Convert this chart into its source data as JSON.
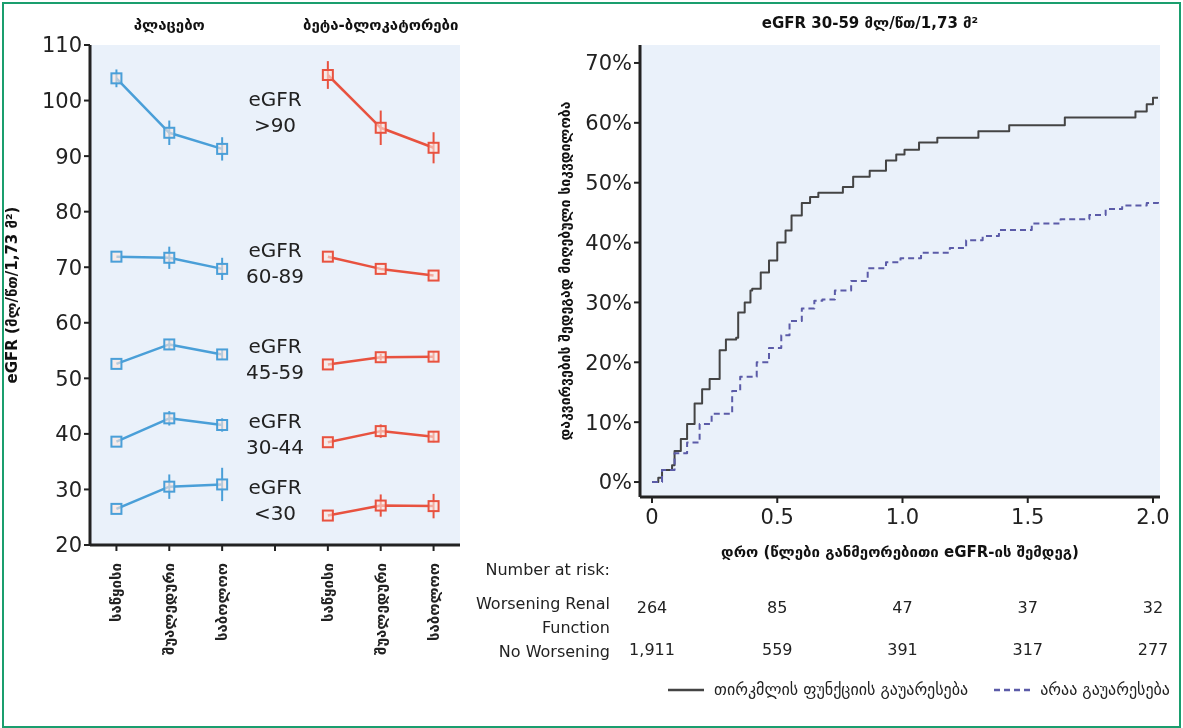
{
  "chart_data": [
    {
      "type": "line",
      "ylabel": "eGFR (მლ/წთ/1,73 მ²)",
      "categories": [
        "საწყისი",
        "შუალედური",
        "საბოლოო",
        null,
        "საწყისი",
        "შუალედური",
        "საბოლოო"
      ],
      "ylim": [
        20,
        110
      ],
      "yticks": [
        20,
        30,
        40,
        50,
        60,
        70,
        80,
        90,
        100,
        110
      ],
      "grid": false,
      "marker": "square",
      "series": [
        {
          "color": "#4a9fd8",
          "values": [
            104,
            94.2,
            91.3,
            null,
            null,
            null,
            null
          ],
          "errors": [
            1.6,
            2.2,
            2.1,
            null,
            null,
            null,
            null
          ]
        },
        {
          "color": "#e8523f",
          "values": [
            null,
            null,
            null,
            null,
            104.6,
            95.1,
            91.5
          ],
          "errors": [
            null,
            null,
            null,
            null,
            2.5,
            3.1,
            2.8
          ]
        },
        {
          "color": "#4a9fd8",
          "values": [
            71.9,
            71.7,
            69.7,
            null,
            null,
            null,
            null
          ],
          "errors": [
            null,
            2.0,
            2.0,
            null,
            null,
            null,
            null
          ]
        },
        {
          "color": "#e8523f",
          "values": [
            null,
            null,
            null,
            null,
            71.9,
            69.7,
            68.5
          ]
        },
        {
          "color": "#4a9fd8",
          "values": [
            52.6,
            56.1,
            54.3,
            null,
            null,
            null,
            null
          ],
          "errors": [
            null,
            0.9,
            0.9,
            null,
            null,
            null,
            null
          ]
        },
        {
          "color": "#e8523f",
          "values": [
            null,
            null,
            null,
            null,
            52.5,
            53.8,
            53.9
          ],
          "errors": [
            null,
            null,
            null,
            null,
            null,
            0.6,
            0.9
          ]
        },
        {
          "color": "#4a9fd8",
          "values": [
            38.6,
            42.8,
            41.6,
            null,
            null,
            null,
            null
          ],
          "errors": [
            null,
            1.3,
            1.2,
            null,
            null,
            null,
            null
          ]
        },
        {
          "color": "#e8523f",
          "values": [
            null,
            null,
            null,
            null,
            38.5,
            40.5,
            39.5
          ],
          "errors": [
            null,
            null,
            null,
            null,
            null,
            1.2,
            1.0
          ]
        },
        {
          "color": "#4a9fd8",
          "values": [
            26.5,
            30.5,
            30.9,
            null,
            null,
            null,
            null
          ],
          "errors": [
            null,
            2.2,
            3.0,
            null,
            null,
            null,
            null
          ]
        },
        {
          "color": "#e8523f",
          "values": [
            null,
            null,
            null,
            null,
            25.3,
            27.1,
            27.0
          ],
          "errors": [
            null,
            null,
            null,
            null,
            null,
            2.0,
            2.2
          ]
        }
      ],
      "annotations": [
        "პლაცებო",
        "ბეტა-ბლოკატორები",
        "eGFR >90",
        "eGFR 60-89",
        "eGFR 45-59",
        "eGFR 30-44",
        "eGFR <30"
      ]
    },
    {
      "type": "step",
      "title": "eGFR 30-59 მლ/წთ/1,73 მ²",
      "xlabel": "დრო (წლები განმეორებითი eGFR-ის შემდეგ)",
      "ylabel": "დაკვირვების შედეგად მიღებული სიკვდილობა",
      "xlim": [
        -0.048,
        2.028
      ],
      "xticks": [
        0,
        0.5,
        {
          "value": 1,
          "label": "1.0"
        },
        {
          "value": 1.5,
          "label": "1.5"
        },
        {
          "value": 2,
          "label": "2.0"
        }
      ],
      "ylim": [
        -2.5,
        73
      ],
      "yticks": [
        {
          "value": 0,
          "label": "0%"
        },
        {
          "value": 10,
          "label": "10%"
        },
        {
          "value": 20,
          "label": "20%"
        },
        {
          "value": 30,
          "label": "30%"
        },
        {
          "value": 40,
          "label": "40%"
        },
        {
          "value": 50,
          "label": "50%"
        },
        {
          "value": 60,
          "label": "60%"
        },
        {
          "value": 70,
          "label": "70%"
        }
      ],
      "grid": false,
      "legend": "bottom",
      "series": [
        {
          "name": "თირკმლის ფუნქციის გაუარესება",
          "color": "#444444",
          "line_style": "solid",
          "x": [
            0,
            0.025,
            0.04,
            0.08,
            0.09,
            0.115,
            0.14,
            0.17,
            0.2,
            0.23,
            0.27,
            0.295,
            0.336,
            0.344,
            0.37,
            0.393,
            0.4,
            0.434,
            0.467,
            0.5,
            0.533,
            0.557,
            0.598,
            0.631,
            0.664,
            0.762,
            0.803,
            0.869,
            0.934,
            0.975,
            1.008,
            1.066,
            1.139,
            1.303,
            1.426,
            1.648,
            1.93,
            1.975,
            2.0,
            2.02
          ],
          "values": [
            0,
            0.7,
            2,
            2.8,
            5.2,
            7.2,
            9.7,
            13.1,
            15.5,
            17.2,
            22,
            23.8,
            24.1,
            28.3,
            30,
            32,
            32.3,
            35,
            37,
            40,
            42,
            44.5,
            46.6,
            47.6,
            48.3,
            49.3,
            51,
            52,
            53.7,
            54.7,
            55.5,
            56.7,
            57.5,
            58.6,
            59.6,
            60.9,
            61.9,
            63.1,
            64.2,
            64.2
          ]
        },
        {
          "name": "არაა გაუარესება",
          "color": "#5b5ba8",
          "line_style": "dashed",
          "x": [
            0,
            0.04,
            0.09,
            0.14,
            0.19,
            0.238,
            0.32,
            0.352,
            0.418,
            0.467,
            0.516,
            0.549,
            0.598,
            0.648,
            0.68,
            0.73,
            0.795,
            0.861,
            0.934,
            0.992,
            1.074,
            1.189,
            1.254,
            1.32,
            1.385,
            1.516,
            1.631,
            1.746,
            1.811,
            1.877,
            1.975,
            2.02
          ],
          "values": [
            0,
            2,
            4.8,
            6.6,
            9.7,
            11.4,
            15.2,
            17.6,
            20,
            22.4,
            24.5,
            26.9,
            29,
            30.3,
            30.5,
            32,
            33.6,
            35.7,
            36.7,
            37.4,
            38.3,
            39.1,
            40.4,
            41.1,
            42.1,
            43.2,
            43.9,
            44.6,
            45.6,
            46.2,
            46.6,
            46.8
          ]
        }
      ],
      "annotations": [
        "Number at risk:",
        "Worsening Renal Function",
        "264",
        "85",
        "47",
        "37",
        "32",
        "No Worsening",
        "1,911",
        "559",
        "391",
        "317",
        "277"
      ]
    }
  ]
}
